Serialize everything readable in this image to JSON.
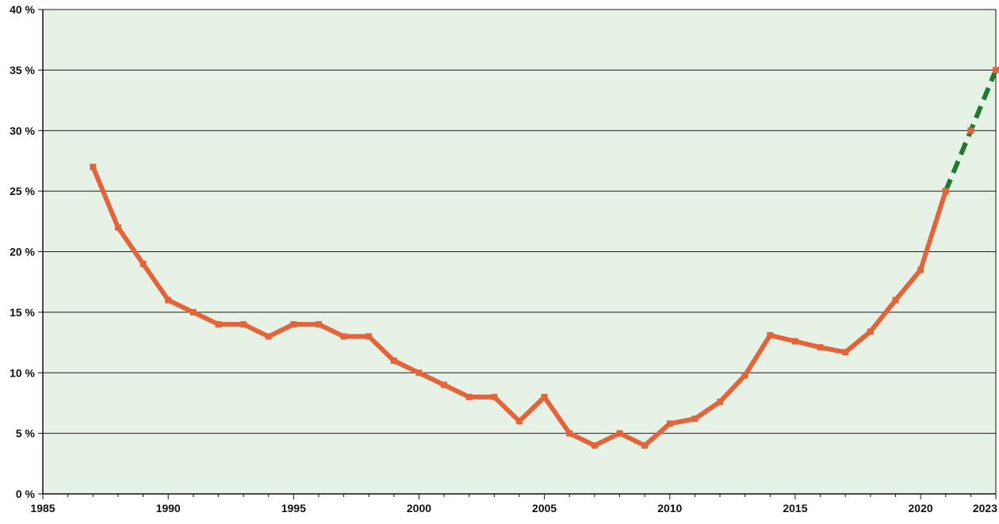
{
  "chart_data": {
    "type": "line",
    "title": "",
    "xlabel": "",
    "ylabel": "",
    "xlim": [
      1985,
      2023
    ],
    "ylim": [
      0,
      40
    ],
    "x_ticks": [
      1985,
      1990,
      1995,
      2000,
      2005,
      2010,
      2015,
      2020,
      2023
    ],
    "y_ticks": [
      {
        "value": 0,
        "label": "0 %"
      },
      {
        "value": 5,
        "label": "5 %"
      },
      {
        "value": 10,
        "label": "10 %"
      },
      {
        "value": 15,
        "label": "15 %"
      },
      {
        "value": 20,
        "label": "20 %"
      },
      {
        "value": 25,
        "label": "25 %"
      },
      {
        "value": 30,
        "label": "30 %"
      },
      {
        "value": 35,
        "label": "35 %"
      },
      {
        "value": 40,
        "label": "40 %"
      }
    ],
    "grid": "horizontal",
    "legend": "none",
    "colors": {
      "plot_background": "#e6f2e6",
      "grid": "#1a1a1a",
      "series": "#e3643a",
      "projection": "#1f7a2e"
    },
    "series": [
      {
        "style": "solid",
        "x": [
          1987,
          1988,
          1989,
          1990,
          1991,
          1992,
          1993,
          1994,
          1995,
          1996,
          1997,
          1998,
          1999,
          2000,
          2001,
          2002,
          2003,
          2004,
          2005,
          2006,
          2007,
          2008,
          2009,
          2010,
          2011,
          2012,
          2013,
          2014,
          2015,
          2016,
          2017,
          2018,
          2019,
          2020,
          2021
        ],
        "y": [
          27,
          22,
          19,
          16,
          15,
          14,
          14,
          13,
          14,
          14,
          13,
          13,
          11,
          10,
          9,
          8,
          8,
          6,
          8,
          5,
          4,
          5,
          4,
          5.8,
          6.2,
          7.6,
          9.8,
          13.1,
          12.6,
          12.1,
          11.7,
          13.4,
          16,
          18.5,
          25
        ]
      },
      {
        "style": "dashed",
        "x": [
          2021,
          2022,
          2023
        ],
        "y": [
          25,
          30,
          35
        ]
      }
    ]
  }
}
